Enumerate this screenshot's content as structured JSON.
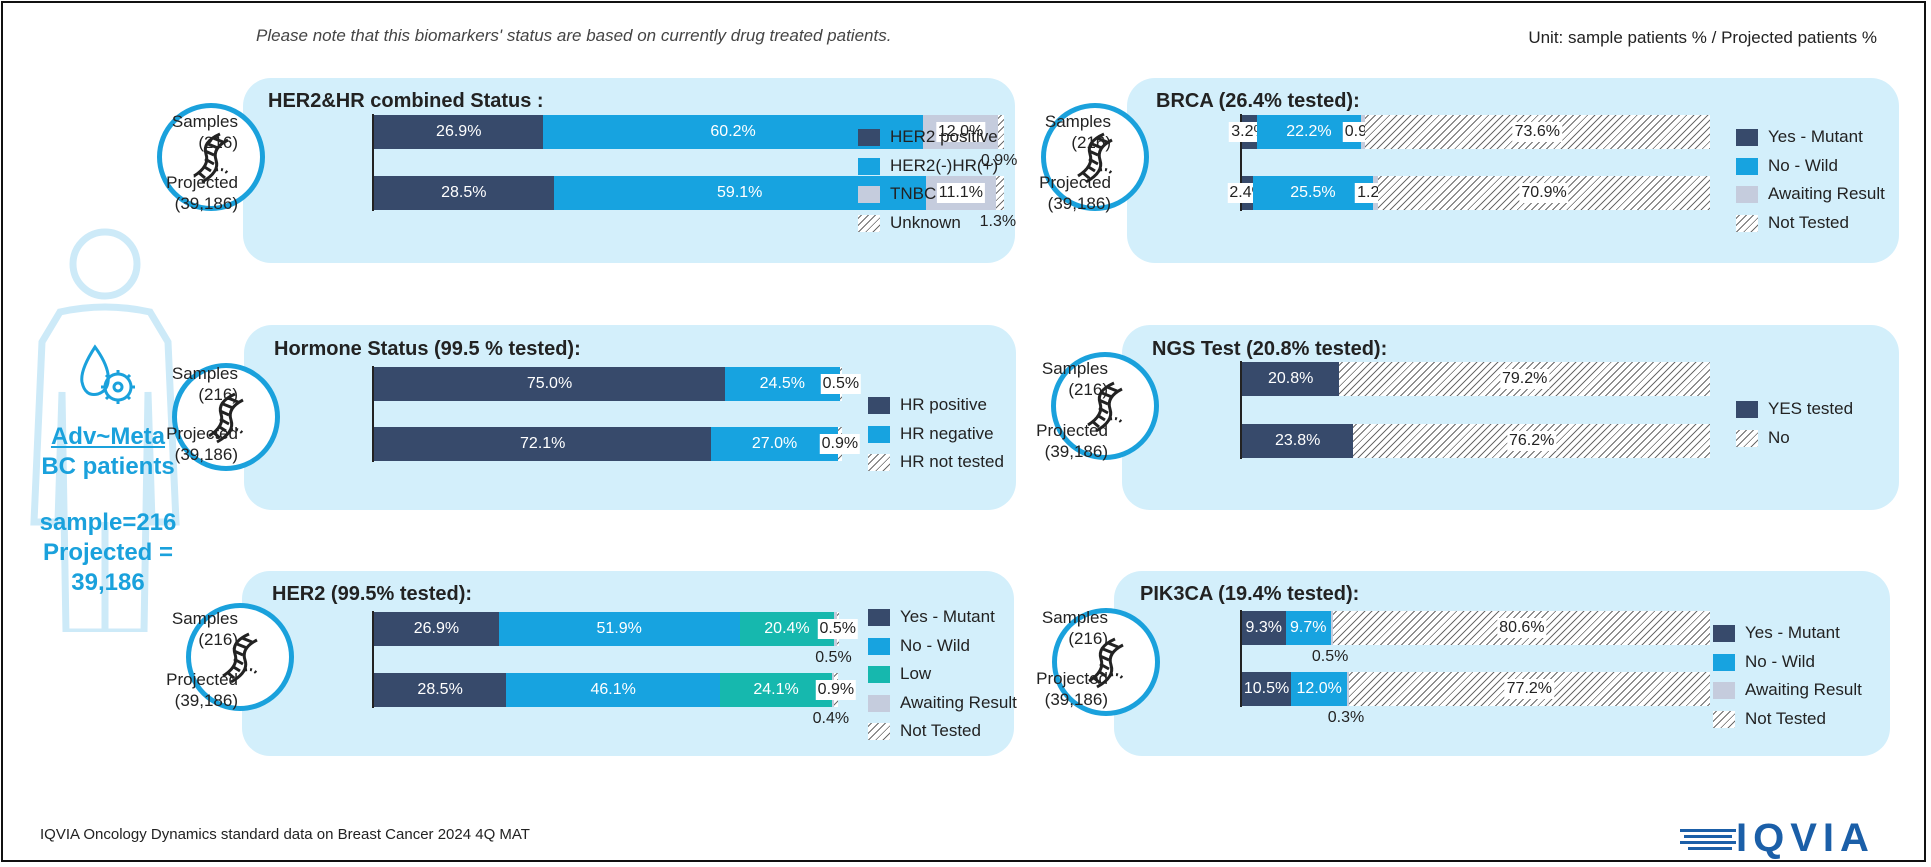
{
  "header": {
    "note": "Please note that this biomarkers' status are based on currently drug treated patients.",
    "unit": "Unit: sample patients % / Projected patients %"
  },
  "patient": {
    "title_line1": "Adv~Meta",
    "title_line2": "BC patients",
    "sample": "sample=216",
    "projected_line1": "Projected =",
    "projected_line2": "39,186"
  },
  "footer": {
    "source": "IQVIA Oncology Dynamics standard data on Breast Cancer 2024 4Q MAT",
    "logo": "IQVIA"
  },
  "colors": {
    "navy": "#374a6b",
    "blue": "#17a3e0",
    "teal": "#16b8ae",
    "lavender": "#c5ccdd",
    "hatch": "hatch"
  },
  "row_labels": {
    "samples_1": "Samples",
    "samples_2": "(216)",
    "projected_1": "Projected",
    "projected_2": "(39,186)"
  },
  "chart_data": [
    {
      "id": "her2hr",
      "type": "bar",
      "orientation": "horizontal-stacked",
      "title": "HER2&HR combined Status :",
      "categories": [
        "Samples (216)",
        "Projected (39,186)"
      ],
      "series": [
        {
          "name": "HER2 positive",
          "color": "#374a6b",
          "values": [
            26.9,
            28.5
          ]
        },
        {
          "name": "HER2(-)HR(+)",
          "color": "#17a3e0",
          "values": [
            60.2,
            59.1
          ]
        },
        {
          "name": "TNBC",
          "color": "#c5ccdd",
          "values": [
            12.0,
            11.1
          ]
        },
        {
          "name": "Unknown",
          "color": "hatch",
          "values": [
            0.9,
            1.3
          ]
        }
      ],
      "labels": [
        [
          "26.9%",
          "60.2%",
          "12.0%",
          "0.9%"
        ],
        [
          "28.5%",
          "59.1%",
          "11.1%",
          "1.3%"
        ]
      ],
      "below": [
        3,
        3
      ],
      "xlim": [
        0,
        100
      ]
    },
    {
      "id": "hormone",
      "type": "bar",
      "orientation": "horizontal-stacked",
      "title": "Hormone Status (99.5 % tested):",
      "categories": [
        "Samples (216)",
        "Projected (39,186)"
      ],
      "series": [
        {
          "name": "HR positive",
          "color": "#374a6b",
          "values": [
            75.0,
            72.1
          ]
        },
        {
          "name": "HR negative",
          "color": "#17a3e0",
          "values": [
            24.5,
            27.0
          ]
        },
        {
          "name": "HR not tested",
          "color": "hatch",
          "values": [
            0.5,
            0.9
          ]
        }
      ],
      "labels": [
        [
          "75.0%",
          "24.5%",
          "0.5%"
        ],
        [
          "72.1%",
          "27.0%",
          "0.9%"
        ]
      ],
      "below": [
        -1,
        -1
      ],
      "xlim": [
        0,
        100
      ]
    },
    {
      "id": "her2",
      "type": "bar",
      "orientation": "horizontal-stacked",
      "title": "HER2  (99.5% tested):",
      "categories": [
        "Samples (216)",
        "Projected (39,186)"
      ],
      "series": [
        {
          "name": "Yes - Mutant",
          "color": "#374a6b",
          "values": [
            26.9,
            28.5
          ]
        },
        {
          "name": "No - Wild",
          "color": "#17a3e0",
          "values": [
            51.9,
            46.1
          ]
        },
        {
          "name": "Low",
          "color": "#16b8ae",
          "values": [
            20.4,
            24.1
          ]
        },
        {
          "name": "Awaiting Result",
          "color": "#c5ccdd",
          "values": [
            0.5,
            0.4
          ]
        },
        {
          "name": "Not Tested",
          "color": "hatch",
          "values": [
            0.5,
            0.9
          ]
        }
      ],
      "labels": [
        [
          "26.9%",
          "51.9%",
          "20.4%",
          "0.5%",
          "0.5%"
        ],
        [
          "28.5%",
          "46.1%",
          "24.1%",
          "0.4%",
          "0.9%"
        ]
      ],
      "below": [
        3,
        3
      ],
      "xlim": [
        0,
        100
      ]
    },
    {
      "id": "brca",
      "type": "bar",
      "orientation": "horizontal-stacked",
      "title": "BRCA (26.4% tested):",
      "categories": [
        "Samples (216)",
        "Projected (39,186)"
      ],
      "series": [
        {
          "name": "Yes - Mutant",
          "color": "#374a6b",
          "values": [
            3.2,
            2.4
          ]
        },
        {
          "name": "No - Wild",
          "color": "#17a3e0",
          "values": [
            22.2,
            25.5
          ]
        },
        {
          "name": "Awaiting Result",
          "color": "#c5ccdd",
          "values": [
            0.9,
            1.2
          ]
        },
        {
          "name": "Not Tested",
          "color": "hatch",
          "values": [
            73.6,
            70.9
          ]
        }
      ],
      "labels": [
        [
          "3.2%",
          "22.2%",
          "0.9%",
          "73.6%"
        ],
        [
          "2.4%",
          "25.5%",
          "1.2%",
          "70.9%"
        ]
      ],
      "below": [
        -1,
        -1
      ],
      "xlim": [
        0,
        100
      ]
    },
    {
      "id": "ngs",
      "type": "bar",
      "orientation": "horizontal-stacked",
      "title": "NGS Test (20.8% tested):",
      "categories": [
        "Samples (216)",
        "Projected (39,186)"
      ],
      "series": [
        {
          "name": "YES tested",
          "color": "#374a6b",
          "values": [
            20.8,
            23.8
          ]
        },
        {
          "name": "No",
          "color": "hatch",
          "values": [
            79.2,
            76.2
          ]
        }
      ],
      "labels": [
        [
          "20.8%",
          "79.2%"
        ],
        [
          "23.8%",
          "76.2%"
        ]
      ],
      "below": [
        -1,
        -1
      ],
      "xlim": [
        0,
        100
      ]
    },
    {
      "id": "pik3ca",
      "type": "bar",
      "orientation": "horizontal-stacked",
      "title": "PIK3CA (19.4% tested):",
      "categories": [
        "Samples (216)",
        "Projected (39,186)"
      ],
      "series": [
        {
          "name": "Yes - Mutant",
          "color": "#374a6b",
          "values": [
            9.3,
            10.5
          ]
        },
        {
          "name": "No - Wild",
          "color": "#17a3e0",
          "values": [
            9.7,
            12.0
          ]
        },
        {
          "name": "Awaiting Result",
          "color": "#c5ccdd",
          "values": [
            0.5,
            0.3
          ]
        },
        {
          "name": "Not Tested",
          "color": "hatch",
          "values": [
            80.6,
            77.2
          ]
        }
      ],
      "labels": [
        [
          "9.3%",
          "9.7%",
          "0.5%",
          "80.6%"
        ],
        [
          "10.5%",
          "12.0%",
          "0.3%",
          "77.2%"
        ]
      ],
      "below": [
        2,
        2
      ],
      "xlim": [
        0,
        100
      ]
    }
  ]
}
